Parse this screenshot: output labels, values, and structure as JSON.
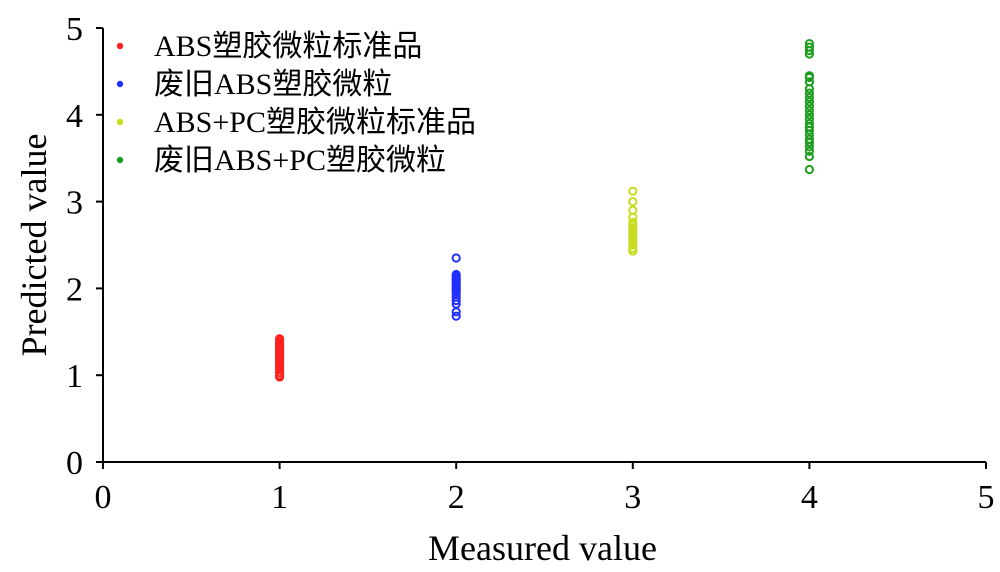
{
  "chart_data": {
    "type": "scatter",
    "xlabel": "Measured value",
    "ylabel": "Predicted value",
    "xlim": [
      0,
      5
    ],
    "ylim": [
      0,
      5
    ],
    "x_ticks": [
      "0",
      "1",
      "2",
      "3",
      "4",
      "5"
    ],
    "y_ticks": [
      "0",
      "1",
      "2",
      "3",
      "4",
      "5"
    ],
    "grid": false,
    "legend_position": "top-left",
    "series": [
      {
        "name": "ABS塑胶微粒标准品",
        "color": "#ff2020",
        "points": [
          [
            1,
            0.98
          ],
          [
            1,
            1.0
          ],
          [
            1,
            1.03
          ],
          [
            1,
            1.06
          ],
          [
            1,
            1.08
          ],
          [
            1,
            1.1
          ],
          [
            1,
            1.12
          ],
          [
            1,
            1.14
          ],
          [
            1,
            1.16
          ],
          [
            1,
            1.18
          ],
          [
            1,
            1.2
          ],
          [
            1,
            1.22
          ],
          [
            1,
            1.24
          ],
          [
            1,
            1.26
          ],
          [
            1,
            1.28
          ],
          [
            1,
            1.3
          ],
          [
            1,
            1.32
          ],
          [
            1,
            1.34
          ],
          [
            1,
            1.36
          ],
          [
            1,
            1.38
          ],
          [
            1,
            1.4
          ],
          [
            1,
            1.42
          ]
        ]
      },
      {
        "name": "废旧ABS塑胶微粒",
        "color": "#1f2fff",
        "points": [
          [
            2,
            1.68
          ],
          [
            2,
            1.73
          ],
          [
            2,
            1.82
          ],
          [
            2,
            1.86
          ],
          [
            2,
            1.9
          ],
          [
            2,
            1.93
          ],
          [
            2,
            1.96
          ],
          [
            2,
            1.98
          ],
          [
            2,
            2.0
          ],
          [
            2,
            2.02
          ],
          [
            2,
            2.04
          ],
          [
            2,
            2.06
          ],
          [
            2,
            2.08
          ],
          [
            2,
            2.1
          ],
          [
            2,
            2.12
          ],
          [
            2,
            2.14
          ],
          [
            2,
            2.16
          ],
          [
            2,
            2.35
          ]
        ]
      },
      {
        "name": "ABS+PC塑胶微粒标准品",
        "color": "#c8dc1e",
        "points": [
          [
            3,
            2.43
          ],
          [
            3,
            2.46
          ],
          [
            3,
            2.5
          ],
          [
            3,
            2.53
          ],
          [
            3,
            2.56
          ],
          [
            3,
            2.6
          ],
          [
            3,
            2.63
          ],
          [
            3,
            2.66
          ],
          [
            3,
            2.7
          ],
          [
            3,
            2.73
          ],
          [
            3,
            2.76
          ],
          [
            3,
            2.82
          ],
          [
            3,
            2.9
          ],
          [
            3,
            3.0
          ],
          [
            3,
            3.12
          ]
        ]
      },
      {
        "name": "废旧ABS+PC塑胶微粒",
        "color": "#1e9e1e",
        "points": [
          [
            4,
            3.37
          ],
          [
            4,
            3.52
          ],
          [
            4,
            3.58
          ],
          [
            4,
            3.63
          ],
          [
            4,
            3.68
          ],
          [
            4,
            3.72
          ],
          [
            4,
            3.77
          ],
          [
            4,
            3.82
          ],
          [
            4,
            3.86
          ],
          [
            4,
            3.9
          ],
          [
            4,
            3.95
          ],
          [
            4,
            4.0
          ],
          [
            4,
            4.05
          ],
          [
            4,
            4.1
          ],
          [
            4,
            4.15
          ],
          [
            4,
            4.2
          ],
          [
            4,
            4.25
          ],
          [
            4,
            4.3
          ],
          [
            4,
            4.38
          ],
          [
            4,
            4.43
          ],
          [
            4,
            4.45
          ],
          [
            4,
            4.7
          ],
          [
            4,
            4.74
          ],
          [
            4,
            4.78
          ],
          [
            4,
            4.82
          ]
        ]
      }
    ]
  }
}
